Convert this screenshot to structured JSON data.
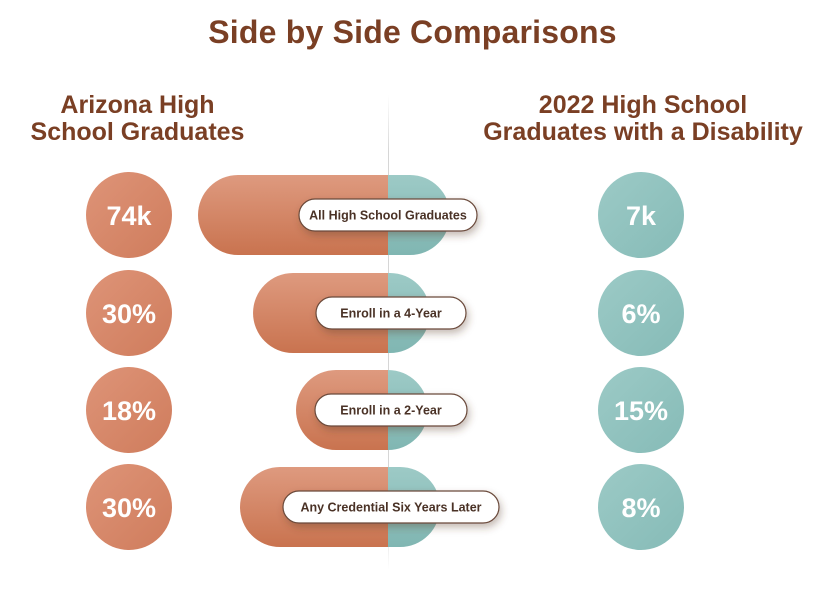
{
  "title": "Side by Side Comparisons",
  "left_heading": [
    "Arizona High",
    "School Graduates"
  ],
  "right_heading": [
    "2022 High School",
    "Graduates with a Disability"
  ],
  "colors": {
    "left": "#d8896a",
    "left_dark": "#c9734f",
    "right": "#8fc1bd",
    "right_dark": "#7db5b1",
    "title": "#7a3f24"
  },
  "chart_data": {
    "type": "bar",
    "categories": [
      "All High School Graduates",
      "Enroll in a 4-Year",
      "Enroll in a 2-Year",
      "Any Credential Six Years Later"
    ],
    "series": [
      {
        "name": "Arizona High School Graduates",
        "values": [
          "74k",
          "30%",
          "18%",
          "30%"
        ]
      },
      {
        "name": "2022 High School Graduates with a Disability",
        "values": [
          "7k",
          "6%",
          "15%",
          "8%"
        ]
      }
    ]
  }
}
